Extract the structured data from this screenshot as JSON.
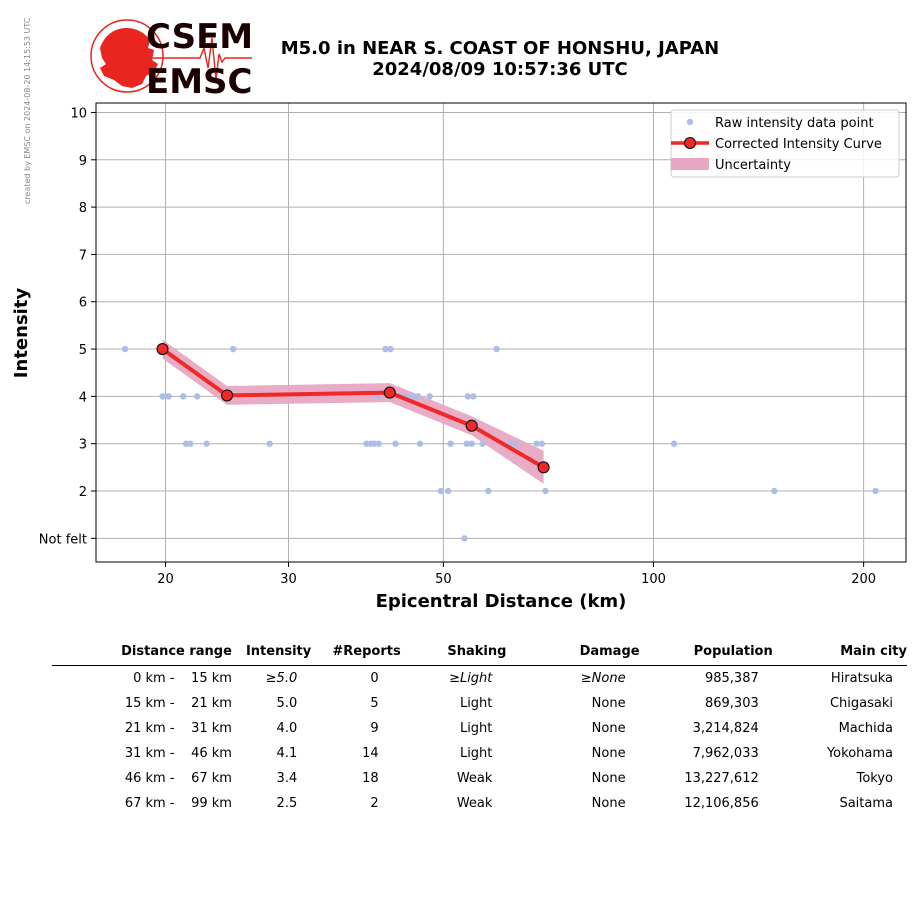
{
  "side_note": "created by EMSC on 2024-08-20 14:15:53 UTC",
  "logo": {
    "line1": "CSEM",
    "line2": "EMSC",
    "accent_color": "#e8251f",
    "text_color": "#1a0000"
  },
  "title": {
    "line1": "M5.0 in NEAR S. COAST OF HONSHU, JAPAN",
    "line2": "2024/08/09 10:57:36 UTC"
  },
  "chart_data": {
    "type": "scatter",
    "xlabel": "Epicentral Distance (km)",
    "ylabel": "Intensity",
    "x_scale": "log",
    "xlim": [
      15.9,
      230
    ],
    "ylim": [
      0.5,
      10.2
    ],
    "x_ticks": [
      20,
      30,
      50,
      100,
      200
    ],
    "y_ticks": [
      {
        "value": 1,
        "label": "Not felt"
      },
      {
        "value": 2,
        "label": "2"
      },
      {
        "value": 3,
        "label": "3"
      },
      {
        "value": 4,
        "label": "4"
      },
      {
        "value": 5,
        "label": "5"
      },
      {
        "value": 6,
        "label": "6"
      },
      {
        "value": 7,
        "label": "7"
      },
      {
        "value": 8,
        "label": "8"
      },
      {
        "value": 9,
        "label": "9"
      },
      {
        "value": 10,
        "label": "10"
      }
    ],
    "grid": true,
    "legend_position": "top-right",
    "colors": {
      "raw": "#aebde8",
      "curve": "#f02828",
      "marker_edge": "#111111",
      "uncertainty": "#e8a8c4",
      "grid": "#b0b0b0"
    },
    "legend": [
      "Raw intensity data point",
      "Corrected Intensity Curve",
      "Uncertainty"
    ],
    "series": [
      {
        "name": "Raw intensity data point",
        "kind": "points",
        "points": [
          [
            17.5,
            5
          ],
          [
            19.8,
            4
          ],
          [
            20.2,
            4
          ],
          [
            21.2,
            4
          ],
          [
            21.4,
            3
          ],
          [
            21.7,
            3
          ],
          [
            22.2,
            4
          ],
          [
            22.9,
            3
          ],
          [
            25.0,
            5
          ],
          [
            28.2,
            3
          ],
          [
            38.8,
            3
          ],
          [
            39.4,
            3
          ],
          [
            39.8,
            3
          ],
          [
            40.4,
            3
          ],
          [
            40.2,
            4
          ],
          [
            41.3,
            5
          ],
          [
            42.0,
            5
          ],
          [
            42.7,
            3
          ],
          [
            43.2,
            4
          ],
          [
            44.2,
            4
          ],
          [
            45.3,
            4
          ],
          [
            46.0,
            4
          ],
          [
            46.3,
            3
          ],
          [
            47.8,
            4
          ],
          [
            49.6,
            2
          ],
          [
            50.8,
            2
          ],
          [
            51.2,
            3
          ],
          [
            53.6,
            1
          ],
          [
            54.0,
            3
          ],
          [
            54.2,
            4
          ],
          [
            54.9,
            3
          ],
          [
            55.2,
            4
          ],
          [
            56.9,
            3
          ],
          [
            58.0,
            2
          ],
          [
            59.6,
            5
          ],
          [
            62.2,
            3
          ],
          [
            63.4,
            3
          ],
          [
            68.0,
            3
          ],
          [
            69.2,
            3
          ],
          [
            70.0,
            2
          ],
          [
            107.0,
            3
          ],
          [
            149.0,
            2
          ],
          [
            208.0,
            2
          ]
        ]
      },
      {
        "name": "Corrected Intensity Curve",
        "kind": "line-markers",
        "points": [
          [
            19.8,
            5.0
          ],
          [
            24.5,
            4.02
          ],
          [
            41.9,
            4.08
          ],
          [
            54.9,
            3.38
          ],
          [
            69.6,
            2.5
          ]
        ]
      },
      {
        "name": "Uncertainty",
        "kind": "band",
        "upper": [
          [
            19.8,
            5.2
          ],
          [
            24.5,
            4.22
          ],
          [
            41.9,
            4.28
          ],
          [
            54.9,
            3.58
          ],
          [
            69.6,
            2.85
          ]
        ],
        "lower": [
          [
            19.8,
            4.8
          ],
          [
            24.5,
            3.82
          ],
          [
            41.9,
            3.88
          ],
          [
            54.9,
            3.18
          ],
          [
            69.6,
            2.15
          ]
        ]
      }
    ]
  },
  "table": {
    "headers": [
      "Distance range",
      "Intensity",
      "#Reports",
      "Shaking",
      "Damage",
      "Population",
      "Main city"
    ],
    "rows": [
      {
        "from": "0 km -",
        "to": "15 km",
        "intensity": "≥5.0",
        "reports": "0",
        "shaking": "≥Light",
        "damage": "≥None",
        "population": "985,387",
        "city": "Hiratsuka",
        "italic": true
      },
      {
        "from": "15 km -",
        "to": "21 km",
        "intensity": "5.0",
        "reports": "5",
        "shaking": "Light",
        "damage": "None",
        "population": "869,303",
        "city": "Chigasaki",
        "italic": false
      },
      {
        "from": "21 km -",
        "to": "31 km",
        "intensity": "4.0",
        "reports": "9",
        "shaking": "Light",
        "damage": "None",
        "population": "3,214,824",
        "city": "Machida",
        "italic": false
      },
      {
        "from": "31 km -",
        "to": "46 km",
        "intensity": "4.1",
        "reports": "14",
        "shaking": "Light",
        "damage": "None",
        "population": "7,962,033",
        "city": "Yokohama",
        "italic": false
      },
      {
        "from": "46 km -",
        "to": "67 km",
        "intensity": "3.4",
        "reports": "18",
        "shaking": "Weak",
        "damage": "None",
        "population": "13,227,612",
        "city": "Tokyo",
        "italic": false
      },
      {
        "from": "67 km -",
        "to": "99 km",
        "intensity": "2.5",
        "reports": "2",
        "shaking": "Weak",
        "damage": "None",
        "population": "12,106,856",
        "city": "Saitama",
        "italic": false
      }
    ]
  }
}
